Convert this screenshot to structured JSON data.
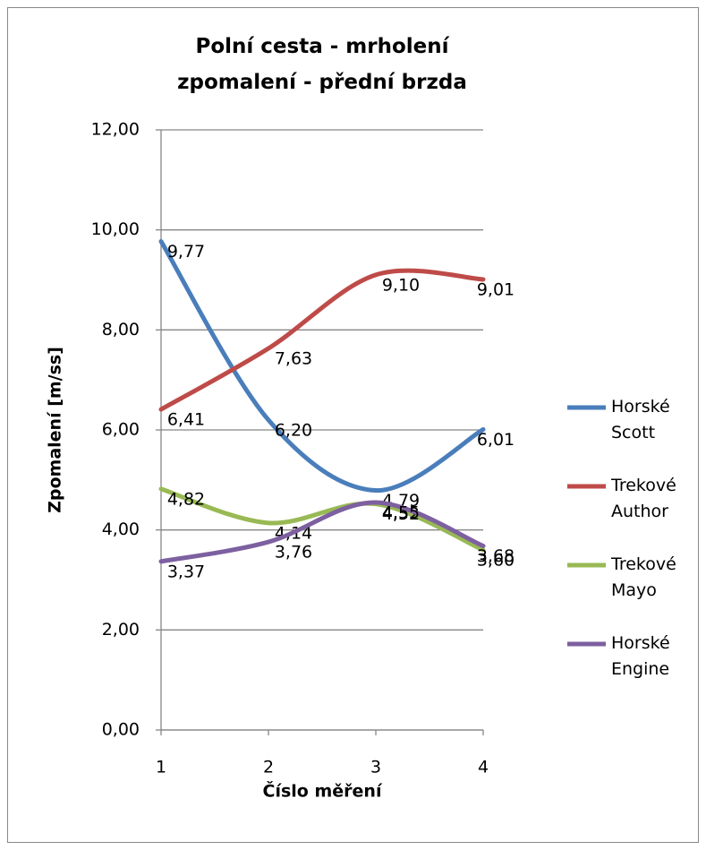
{
  "chart_data": {
    "type": "line",
    "title": "Polní cesta - mrholení\nzpomalení - přední brzda",
    "x_label": "Číslo měření",
    "y_label": "Zpomalení [m/ss]",
    "x": [
      1,
      2,
      3,
      4
    ],
    "xlim": [
      1,
      4
    ],
    "xticks": [
      1,
      2,
      3,
      4
    ],
    "ylim": [
      0,
      12
    ],
    "yticks": [
      {
        "value": 0,
        "label": "0,00"
      },
      {
        "value": 2,
        "label": "2,00"
      },
      {
        "value": 4,
        "label": "4,00"
      },
      {
        "value": 6,
        "label": "6,00"
      },
      {
        "value": 8,
        "label": "8,00"
      },
      {
        "value": 10,
        "label": "10,00"
      },
      {
        "value": 12,
        "label": "12,00"
      }
    ],
    "grid": true,
    "legend": "right",
    "smooth": true,
    "series": [
      {
        "name": "Horské Scott",
        "color": "#4a7ebb",
        "values": [
          9.77,
          6.2,
          4.79,
          6.01
        ],
        "value_labels": [
          "9,77",
          "6,20",
          "4,79",
          "6,01"
        ]
      },
      {
        "name": "Trekové Author",
        "color": "#be4b48",
        "values": [
          6.41,
          7.63,
          9.1,
          9.01
        ],
        "value_labels": [
          "6,41",
          "7,63",
          "9,10",
          "9,01"
        ]
      },
      {
        "name": "Trekové Mayo",
        "color": "#98b954",
        "values": [
          4.82,
          4.14,
          4.52,
          3.6
        ],
        "value_labels": [
          "4,82",
          "4,14",
          "4,52",
          "3,60"
        ]
      },
      {
        "name": "Horské Engine",
        "color": "#7d60a0",
        "values": [
          3.37,
          3.76,
          4.55,
          3.68
        ],
        "value_labels": [
          "3,37",
          "3,76",
          "4,55",
          "3,68"
        ]
      }
    ]
  }
}
